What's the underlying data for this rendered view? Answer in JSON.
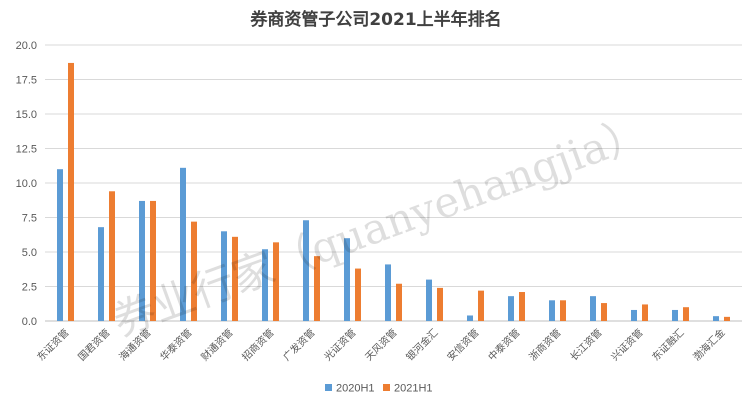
{
  "chart_data": {
    "type": "bar",
    "title": "券商资管子公司2021上半年排名",
    "categories": [
      "东证资管",
      "国君资管",
      "海通资管",
      "华泰资管",
      "财通资管",
      "招商资管",
      "广发资管",
      "光证资管",
      "天风资管",
      "银河金汇",
      "安信资管",
      "中泰资管",
      "浙商资管",
      "长江资管",
      "兴证资管",
      "东证融汇",
      "渤海汇金"
    ],
    "series": [
      {
        "name": "2020H1",
        "color": "#5b9bd5",
        "values": [
          11.0,
          6.8,
          8.7,
          11.1,
          6.5,
          5.2,
          7.3,
          6.0,
          4.1,
          3.0,
          0.4,
          1.8,
          1.5,
          1.8,
          0.8,
          0.8,
          0.35
        ]
      },
      {
        "name": "2021H1",
        "color": "#ed7d31",
        "values": [
          18.7,
          9.4,
          8.7,
          7.2,
          6.1,
          5.7,
          4.7,
          3.8,
          2.7,
          2.4,
          2.2,
          2.1,
          1.5,
          1.3,
          1.2,
          1.0,
          0.3
        ]
      }
    ],
    "yticks": [
      "0.0",
      "2.5",
      "5.0",
      "7.5",
      "10.0",
      "12.5",
      "15.0",
      "17.5",
      "20.0"
    ],
    "ylim": [
      0,
      20
    ],
    "grid": true,
    "legend_position": "bottom"
  },
  "watermark": "券业行家（quanyehangjia）"
}
